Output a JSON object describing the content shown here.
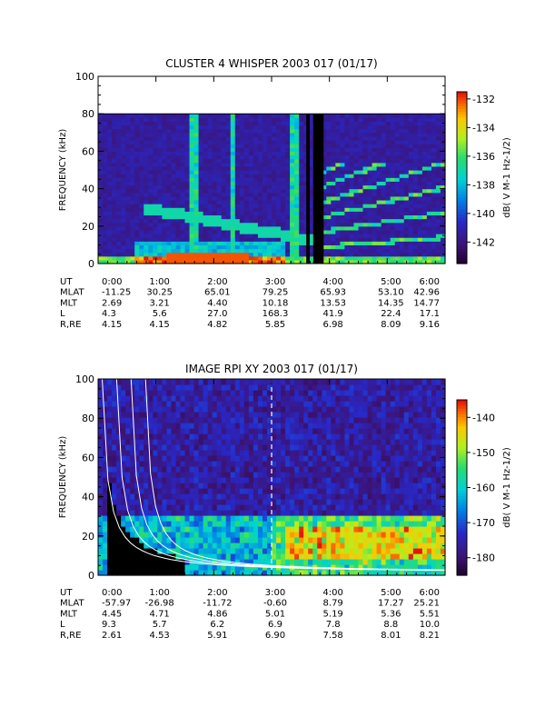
{
  "chart_data": [
    {
      "type": "heatmap",
      "title": "CLUSTER 4 WHISPER 2003 017 (01/17)",
      "ylabel": "FREQUENCY (kHz)",
      "ylim": [
        0,
        100
      ],
      "yticks": [
        "0",
        "20",
        "40",
        "60",
        "80",
        "100"
      ],
      "xlim_hours": [
        0,
        6
      ],
      "data_max_frequency_khz": 80,
      "colorbar": {
        "label": "dB( V M-1 Hz-1/2)",
        "range": [
          -143.5,
          -131.5
        ],
        "ticks": [
          "-132",
          "-134",
          "-136",
          "-138",
          "-140",
          "-142"
        ],
        "colormap": "rainbow"
      },
      "ephemeris": {
        "labels": [
          "UT",
          "MLAT",
          "MLT",
          "L",
          "R,RE"
        ],
        "rows": [
          [
            "0:00",
            "1:00",
            "2:00",
            "3:00",
            "4:00",
            "5:00",
            "6:00"
          ],
          [
            "-11.25",
            "30.25",
            "65.01",
            "79.25",
            "65.93",
            "53.10",
            "42.96"
          ],
          [
            "2.69",
            "3.21",
            "4.40",
            "10.18",
            "13.53",
            "14.35",
            "14.77"
          ],
          [
            "4.3",
            "5.6",
            "27.0",
            "168.3",
            "41.9",
            "22.4",
            "17.1"
          ],
          [
            "4.15",
            "4.15",
            "4.82",
            "5.85",
            "6.98",
            "8.09",
            "9.16"
          ]
        ]
      }
    },
    {
      "type": "heatmap",
      "title": "IMAGE RPI XY 2003 017 (01/17)",
      "ylabel": "FREQUENCY (kHz)",
      "ylim": [
        0,
        100
      ],
      "yticks": [
        "0",
        "20",
        "40",
        "60",
        "80",
        "100"
      ],
      "xlim_hours": [
        0,
        6
      ],
      "dashed_marker_hours": 3.0,
      "colorbar": {
        "label": "dB( V M-1 Hz-1/2)",
        "range": [
          -185,
          -135
        ],
        "ticks": [
          "-140",
          "-150",
          "-160",
          "-170",
          "-180"
        ],
        "colormap": "rainbow"
      },
      "ephemeris": {
        "labels": [
          "UT",
          "MLAT",
          "MLT",
          "L",
          "R,RE"
        ],
        "rows": [
          [
            "0:00",
            "1:00",
            "2:00",
            "3:00",
            "4:00",
            "5:00",
            "6:00"
          ],
          [
            "-57.97",
            "-26.98",
            "-11.72",
            "-0.60",
            "8.79",
            "17.27",
            "25.21"
          ],
          [
            "4.45",
            "4.71",
            "4.86",
            "5.01",
            "5.19",
            "5.36",
            "5.51"
          ],
          [
            "9.3",
            "5.7",
            "6.2",
            "6.9",
            "7.8",
            "8.8",
            "10.0"
          ],
          [
            "2.61",
            "4.53",
            "5.91",
            "6.90",
            "7.58",
            "8.01",
            "8.21"
          ]
        ]
      }
    }
  ]
}
